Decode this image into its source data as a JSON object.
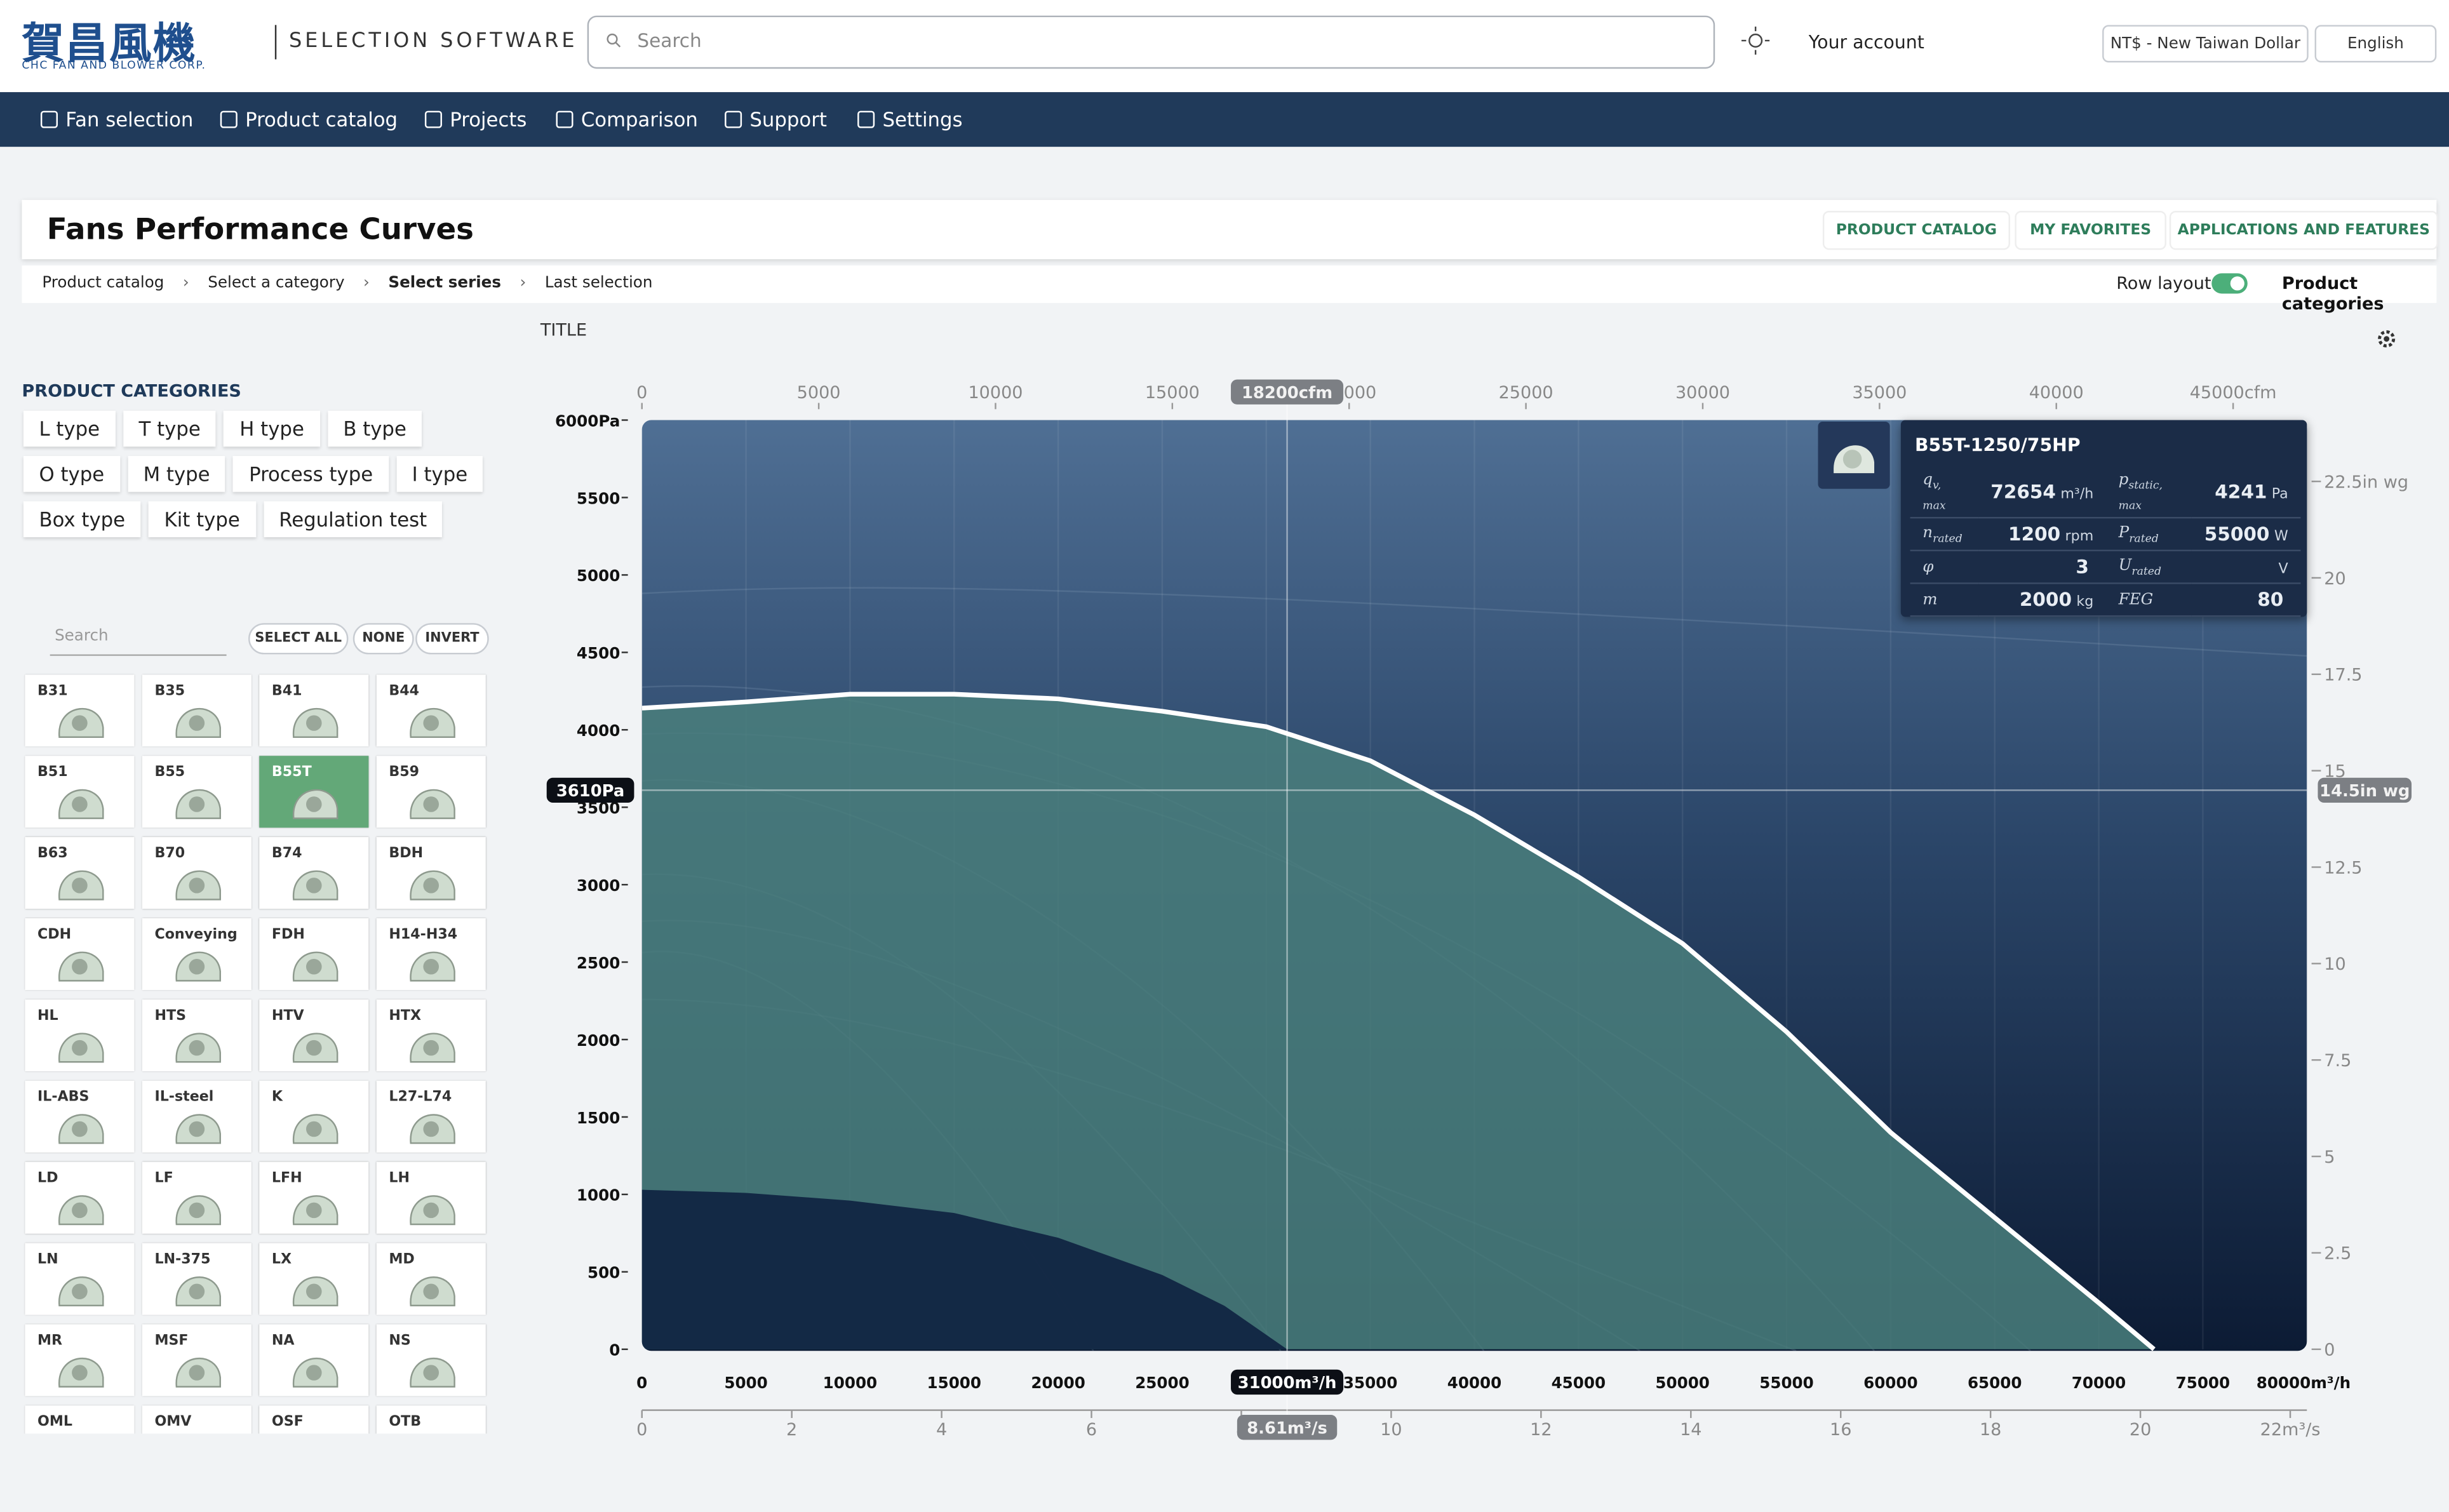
{
  "header": {
    "logo": "賀昌風機",
    "logo_sub": "CHC FAN AND BLOWER CORP.",
    "app_name": "SELECTION SOFTWARE",
    "search_placeholder": "Search",
    "account": "Your account",
    "currency": "NT$ - New Taiwan Dollar",
    "language": "English"
  },
  "nav": [
    "Fan selection",
    "Product catalog",
    "Projects",
    "Comparison",
    "Support",
    "Settings"
  ],
  "page_title": "Fans Performance Curves",
  "actions": [
    "PRODUCT CATALOG",
    "MY FAVORITES",
    "APPLICATIONS AND FEATURES"
  ],
  "breadcrumb": [
    {
      "label": "Product catalog",
      "current": false
    },
    {
      "label": "Select a category",
      "current": false
    },
    {
      "label": "Select series",
      "current": true
    },
    {
      "label": "Last selection",
      "current": false
    }
  ],
  "row_layout": {
    "label": "Row layout",
    "on": true
  },
  "categories_link": "Product categories",
  "sidebar": {
    "heading": "PRODUCT CATEGORIES",
    "categories": [
      "L type",
      "T type",
      "H type",
      "B type",
      "O type",
      "M type",
      "Process type",
      "I type",
      "Box type",
      "Kit type",
      "Regulation test"
    ],
    "search_placeholder": "Search",
    "buttons": [
      "SELECT ALL",
      "NONE",
      "INVERT"
    ],
    "series": [
      {
        "label": "B31",
        "selected": false
      },
      {
        "label": "B35",
        "selected": false
      },
      {
        "label": "B41",
        "selected": false
      },
      {
        "label": "B44",
        "selected": false
      },
      {
        "label": "B51",
        "selected": false
      },
      {
        "label": "B55",
        "selected": false
      },
      {
        "label": "B55T",
        "selected": true
      },
      {
        "label": "B59",
        "selected": false
      },
      {
        "label": "B63",
        "selected": false
      },
      {
        "label": "B70",
        "selected": false
      },
      {
        "label": "B74",
        "selected": false
      },
      {
        "label": "BDH",
        "selected": false
      },
      {
        "label": "CDH",
        "selected": false
      },
      {
        "label": "Conveying",
        "selected": false
      },
      {
        "label": "FDH",
        "selected": false
      },
      {
        "label": "H14-H34",
        "selected": false
      },
      {
        "label": "HL",
        "selected": false
      },
      {
        "label": "HTS",
        "selected": false
      },
      {
        "label": "HTV",
        "selected": false
      },
      {
        "label": "HTX",
        "selected": false
      },
      {
        "label": "IL-ABS",
        "selected": false
      },
      {
        "label": "IL-steel",
        "selected": false
      },
      {
        "label": "K",
        "selected": false
      },
      {
        "label": "L27-L74",
        "selected": false
      },
      {
        "label": "LD",
        "selected": false
      },
      {
        "label": "LF",
        "selected": false
      },
      {
        "label": "LFH",
        "selected": false
      },
      {
        "label": "LH",
        "selected": false
      },
      {
        "label": "LN",
        "selected": false
      },
      {
        "label": "LN-375",
        "selected": false
      },
      {
        "label": "LX",
        "selected": false
      },
      {
        "label": "MD",
        "selected": false
      },
      {
        "label": "MR",
        "selected": false
      },
      {
        "label": "MSF",
        "selected": false
      },
      {
        "label": "NA",
        "selected": false
      },
      {
        "label": "NS",
        "selected": false
      },
      {
        "label": "OML",
        "selected": false
      },
      {
        "label": "OMV",
        "selected": false
      },
      {
        "label": "OSF",
        "selected": false
      },
      {
        "label": "OTB",
        "selected": false
      }
    ]
  },
  "chart": {
    "title": "TITLE",
    "xlim": [
      0,
      80000
    ],
    "xticks": [
      0,
      5000,
      10000,
      15000,
      20000,
      25000,
      30000,
      35000,
      40000,
      45000,
      50000,
      55000,
      60000,
      65000,
      70000,
      75000,
      {
        "value": 80000,
        "label": "80000m³/h"
      }
    ],
    "x2lim": [
      0,
      47086
    ],
    "x2ticks": [
      0,
      5000,
      10000,
      15000,
      20000,
      25000,
      30000,
      35000,
      40000,
      {
        "value": 45000,
        "label": "45000cfm"
      }
    ],
    "x3lim": [
      0,
      22.222
    ],
    "x3ticks": [
      0,
      2,
      4,
      6,
      8,
      10,
      12,
      14,
      16,
      18,
      20,
      {
        "value": 22,
        "label": "22m³/s"
      }
    ],
    "ylim": [
      0,
      6000
    ],
    "yticks": [
      0,
      500,
      1000,
      1500,
      2000,
      2500,
      3000,
      3500,
      4000,
      4500,
      5000,
      5500,
      {
        "value": 6000,
        "label": "6000Pa"
      }
    ],
    "y2lim": [
      0,
      24.09
    ],
    "y2ticks": [
      0,
      2.5,
      5,
      7.5,
      10,
      12.5,
      15,
      17.5,
      20,
      {
        "value": 22.5,
        "label": "22.5in wg"
      }
    ],
    "grid": true,
    "curve": {
      "color": "#ffffff",
      "fill": "#4a7f7c",
      "x": [
        0,
        5000,
        10000,
        15000,
        20000,
        25000,
        30000,
        35000,
        40000,
        45000,
        50000,
        55000,
        60000,
        65000,
        70000,
        72654
      ],
      "y": [
        4140,
        4180,
        4230,
        4230,
        4200,
        4120,
        4020,
        3800,
        3450,
        3050,
        2620,
        2050,
        1400,
        850,
        300,
        0
      ]
    },
    "lower": {
      "fill": "#0e2140",
      "x": [
        0,
        5000,
        10000,
        15000,
        20000,
        25000,
        28000,
        31000
      ],
      "y": [
        1030,
        1010,
        960,
        880,
        720,
        480,
        280,
        0
      ]
    },
    "crosshair": {
      "x": 31000,
      "y": 3610,
      "x_label": "31000m³/h",
      "x2_label": "18200cfm",
      "x3_label": "8.61m³/s",
      "y_label": "3610Pa",
      "y2_label": "14.5in wg"
    },
    "card": {
      "model": "B55T-1250/75HP",
      "fields": [
        {
          "symbol": "q",
          "sub": "v, max",
          "value": "72654",
          "unit": "m³/h"
        },
        {
          "symbol": "p",
          "sub": "static, max",
          "value": "4241",
          "unit": "Pa"
        },
        {
          "symbol": "n",
          "sub": "rated",
          "value": "1200",
          "unit": "rpm"
        },
        {
          "symbol": "P",
          "sub": "rated",
          "value": "55000",
          "unit": "W"
        },
        {
          "symbol": "φ",
          "sub": "",
          "value": "3",
          "unit": ""
        },
        {
          "symbol": "U",
          "sub": "rated",
          "value": "",
          "unit": "V"
        },
        {
          "symbol": "m",
          "sub": "",
          "value": "2000",
          "unit": "kg"
        },
        {
          "symbol": "FEG",
          "sub": "",
          "value": "80",
          "unit": ""
        }
      ]
    }
  }
}
